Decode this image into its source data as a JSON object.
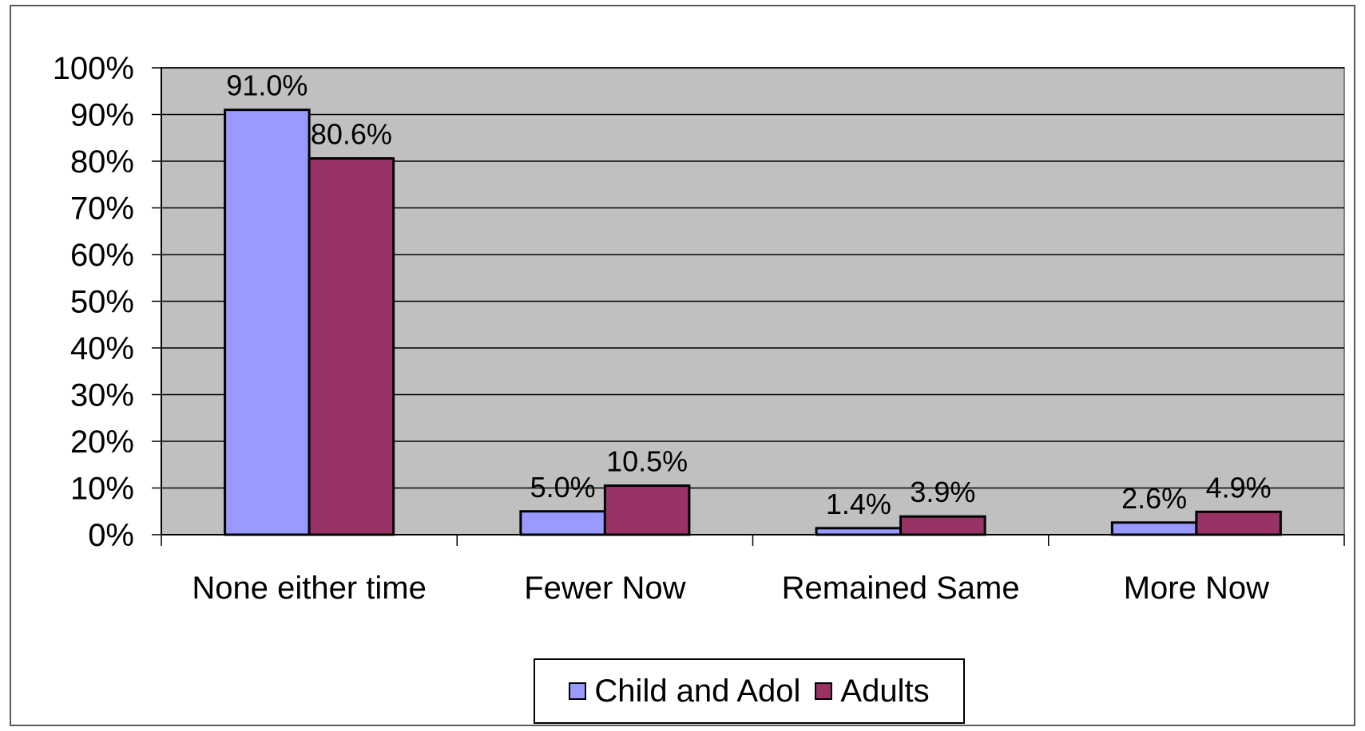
{
  "chart_data": {
    "type": "bar",
    "title": "",
    "xlabel": "",
    "ylabel": "",
    "ylim": [
      0,
      100
    ],
    "y_ticks": [
      "0%",
      "10%",
      "20%",
      "30%",
      "40%",
      "50%",
      "60%",
      "70%",
      "80%",
      "90%",
      "100%"
    ],
    "grid": true,
    "legend_position": "bottom",
    "plot_background": "#c0c0c0",
    "categories": [
      "None either time",
      "Fewer Now",
      "Remained Same",
      "More Now"
    ],
    "series": [
      {
        "name": "Child and Adol",
        "color": "#9999ff",
        "values": [
          91.0,
          5.0,
          1.4,
          2.6
        ],
        "labels": [
          "91.0%",
          "5.0%",
          "1.4%",
          "2.6%"
        ]
      },
      {
        "name": "Adults",
        "color": "#993366",
        "values": [
          80.6,
          10.5,
          3.9,
          4.9
        ],
        "labels": [
          "80.6%",
          "10.5%",
          "3.9%",
          "4.9%"
        ]
      }
    ]
  }
}
